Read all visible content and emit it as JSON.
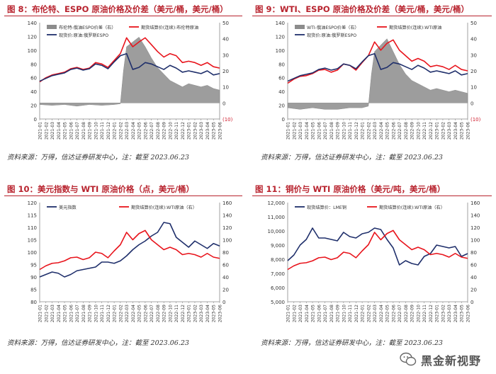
{
  "chart_data": [
    {
      "type": "line",
      "caption": "图 8：布伦特、ESPO 原油价格及价差（美元/桶，美元/桶）",
      "source": "资料来源：万得，信达证券研发中心，注：截至 2023.06.23",
      "x_ticks": [
        "2021-01",
        "2021-02",
        "2021-03",
        "2021-04",
        "2021-05",
        "2021-06",
        "2021-07",
        "2021-08",
        "2021-09",
        "2021-10",
        "2021-11",
        "2021-12",
        "2022-01",
        "2022-02",
        "2022-03",
        "2022-04",
        "2022-05",
        "2022-06",
        "2022-07",
        "2022-08",
        "2022-09",
        "2022-10",
        "2022-11",
        "2022-12",
        "2023-01",
        "2023-02",
        "2023-03",
        "2023-04",
        "2023-05",
        "2023-06"
      ],
      "left_axis": {
        "min": 0,
        "max": 140,
        "ticks": [
          "0",
          "20",
          "40",
          "60",
          "80",
          "100",
          "120",
          "140"
        ]
      },
      "right_axis": {
        "min": -10,
        "max": 50,
        "ticks": [
          "(10)",
          "0",
          "10",
          "20",
          "30",
          "40",
          "50"
        ]
      },
      "legend": [
        "布伦特-俄油ESPO价差（右）",
        "期货结算价(连续):布伦特原油",
        "现货价:原油:俄罗斯ESPO"
      ],
      "series": [
        {
          "name": "布伦特-俄油ESPO价差（右）",
          "axis": "right",
          "kind": "area",
          "color": "#8c8c8c",
          "x": [
            0,
            2,
            4,
            6,
            8,
            10,
            12,
            13,
            13.5,
            14,
            15,
            16,
            17,
            18,
            19,
            20,
            21,
            22,
            23,
            24,
            25,
            26,
            27,
            28,
            29
          ],
          "values": [
            -1,
            -1.5,
            -1,
            -2,
            -1,
            -1.5,
            -1,
            -0.5,
            20,
            35,
            38,
            41,
            35,
            28,
            22,
            18,
            14,
            12,
            10,
            12,
            11,
            10,
            11,
            9,
            8
          ]
        },
        {
          "name": "期货结算价(连续):布伦特原油",
          "axis": "left",
          "kind": "line",
          "color": "#e8141c",
          "x": [
            0,
            1,
            2,
            3,
            4,
            5,
            6,
            7,
            8,
            9,
            10,
            11,
            12,
            13,
            14,
            15,
            16,
            17,
            18,
            19,
            20,
            21,
            22,
            23,
            24,
            25,
            26,
            27,
            28,
            29
          ],
          "values": [
            54,
            60,
            64,
            66,
            68,
            73,
            75,
            72,
            74,
            82,
            80,
            75,
            85,
            95,
            118,
            105,
            112,
            118,
            108,
            98,
            90,
            95,
            92,
            82,
            84,
            82,
            78,
            82,
            76,
            74
          ]
        },
        {
          "name": "现货价:原油:俄罗斯ESPO",
          "axis": "left",
          "kind": "line",
          "color": "#1f2f6b",
          "x": [
            0,
            1,
            2,
            3,
            4,
            5,
            6,
            7,
            8,
            9,
            10,
            11,
            12,
            13,
            14,
            15,
            16,
            17,
            18,
            19,
            20,
            21,
            22,
            23,
            24,
            25,
            26,
            27,
            28,
            29
          ],
          "values": [
            55,
            59,
            63,
            65,
            67,
            72,
            74,
            71,
            73,
            80,
            78,
            73,
            83,
            92,
            95,
            72,
            75,
            82,
            80,
            76,
            72,
            78,
            74,
            68,
            70,
            68,
            66,
            70,
            64,
            66
          ]
        }
      ]
    },
    {
      "type": "line",
      "caption": "图 9：WTI、ESPO 原油价格及价差（美元/桶，美元/桶）",
      "source": "资料来源：万得，信达证券研发中心，注：截至 2023.06.23",
      "x_ticks": [
        "2021-01",
        "2021-02",
        "2021-03",
        "2021-04",
        "2021-05",
        "2021-06",
        "2021-07",
        "2021-08",
        "2021-09",
        "2021-10",
        "2021-11",
        "2021-12",
        "2022-01",
        "2022-02",
        "2022-03",
        "2022-04",
        "2022-05",
        "2022-06",
        "2022-07",
        "2022-08",
        "2022-09",
        "2022-10",
        "2022-11",
        "2022-12",
        "2023-01",
        "2023-02",
        "2023-03",
        "2023-04",
        "2023-05",
        "2023-06"
      ],
      "left_axis": {
        "min": 0,
        "max": 140,
        "ticks": [
          "0",
          "20",
          "40",
          "60",
          "80",
          "100",
          "120",
          "140"
        ]
      },
      "right_axis": {
        "min": -10,
        "max": 50,
        "ticks": [
          "(10)",
          "0",
          "10",
          "20",
          "30",
          "40",
          "50"
        ]
      },
      "legend": [
        "WTI-俄油ESPO价差（右）",
        "期货结算价(连续):WTI原油",
        "现货价:原油:俄罗斯ESPO"
      ],
      "series": [
        {
          "name": "WTI-俄油ESPO价差（右）",
          "axis": "right",
          "kind": "area",
          "color": "#8c8c8c",
          "x": [
            0,
            2,
            4,
            6,
            8,
            10,
            12,
            13,
            13.5,
            14,
            15,
            16,
            17,
            18,
            19,
            20,
            21,
            22,
            23,
            24,
            25,
            26,
            27,
            28,
            29
          ],
          "values": [
            -3,
            -4,
            -3,
            -4,
            -4,
            -3,
            -3,
            -2,
            18,
            32,
            36,
            40,
            32,
            24,
            18,
            14,
            12,
            10,
            8,
            9,
            8,
            7,
            8,
            7,
            6
          ]
        },
        {
          "name": "期货结算价(连续):WTI原油",
          "axis": "left",
          "kind": "line",
          "color": "#e8141c",
          "x": [
            0,
            1,
            2,
            3,
            4,
            5,
            6,
            7,
            8,
            9,
            10,
            11,
            12,
            13,
            14,
            15,
            16,
            17,
            18,
            19,
            20,
            21,
            22,
            23,
            24,
            25,
            26,
            27,
            28,
            29
          ],
          "values": [
            52,
            58,
            62,
            63,
            66,
            71,
            72,
            68,
            71,
            80,
            78,
            71,
            82,
            92,
            112,
            100,
            110,
            115,
            100,
            92,
            84,
            88,
            84,
            76,
            78,
            76,
            72,
            78,
            72,
            70
          ]
        },
        {
          "name": "现货价:原油:俄罗斯ESPO",
          "axis": "left",
          "kind": "line",
          "color": "#1f2f6b",
          "x": [
            0,
            1,
            2,
            3,
            4,
            5,
            6,
            7,
            8,
            9,
            10,
            11,
            12,
            13,
            14,
            15,
            16,
            17,
            18,
            19,
            20,
            21,
            22,
            23,
            24,
            25,
            26,
            27,
            28,
            29
          ],
          "values": [
            55,
            59,
            63,
            65,
            67,
            72,
            74,
            71,
            73,
            80,
            78,
            73,
            83,
            92,
            95,
            72,
            75,
            82,
            80,
            76,
            72,
            78,
            74,
            68,
            70,
            68,
            66,
            70,
            64,
            66
          ]
        }
      ]
    },
    {
      "type": "line",
      "caption": "图 10：美元指数与 WTI 原油价格（点，美元/桶）",
      "source": "资料来源：万得，信达证券研发中心，注：截至 2023.06.23",
      "x_ticks": [
        "2021-01",
        "2021-02",
        "2021-03",
        "2021-04",
        "2021-05",
        "2021-06",
        "2021-07",
        "2021-08",
        "2021-09",
        "2021-10",
        "2021-11",
        "2021-12",
        "2022-01",
        "2022-02",
        "2022-03",
        "2022-04",
        "2022-05",
        "2022-06",
        "2022-07",
        "2022-08",
        "2022-09",
        "2022-10",
        "2022-11",
        "2022-12",
        "2023-01",
        "2023-02",
        "2023-03",
        "2023-04",
        "2023-05",
        "2023-06"
      ],
      "left_axis": {
        "min": 80,
        "max": 120,
        "ticks": [
          "80",
          "85",
          "90",
          "95",
          "100",
          "105",
          "110",
          "115",
          "120"
        ]
      },
      "right_axis": {
        "min": 0,
        "max": 160,
        "ticks": [
          "0",
          "20",
          "40",
          "60",
          "80",
          "100",
          "120",
          "140",
          "160"
        ]
      },
      "legend": [
        "美元指数",
        "期货结算价(连续):WTI原油（右）"
      ],
      "series": [
        {
          "name": "美元指数",
          "axis": "left",
          "kind": "line",
          "color": "#1f2f6b",
          "x": [
            0,
            1,
            2,
            3,
            4,
            5,
            6,
            7,
            8,
            9,
            10,
            11,
            12,
            13,
            14,
            15,
            16,
            17,
            18,
            19,
            20,
            21,
            22,
            23,
            24,
            25,
            26,
            27,
            28,
            29
          ],
          "values": [
            90,
            91,
            92,
            91.5,
            90,
            91,
            92.5,
            93,
            93.5,
            94,
            96,
            96,
            95.5,
            96.5,
            98.5,
            101,
            103,
            104.5,
            106.5,
            108,
            112,
            111.5,
            106,
            104,
            102,
            104.5,
            103,
            101.5,
            103.5,
            102.5
          ]
        },
        {
          "name": "期货结算价(连续):WTI原油（右）",
          "axis": "right",
          "kind": "line",
          "color": "#e8141c",
          "x": [
            0,
            1,
            2,
            3,
            4,
            5,
            6,
            7,
            8,
            9,
            10,
            11,
            12,
            13,
            14,
            15,
            16,
            17,
            18,
            19,
            20,
            21,
            22,
            23,
            24,
            25,
            26,
            27,
            28,
            29
          ],
          "values": [
            52,
            58,
            62,
            63,
            66,
            71,
            72,
            68,
            71,
            80,
            78,
            71,
            82,
            92,
            112,
            100,
            110,
            115,
            100,
            92,
            84,
            88,
            84,
            76,
            78,
            76,
            72,
            78,
            72,
            70
          ]
        }
      ]
    },
    {
      "type": "line",
      "caption": "图 11：铜价与 WTI 原油价格（美元/吨，美元/桶）",
      "source": "资料来源：万得，信达证券研发中心，注：截至 2023.06.23",
      "x_ticks": [
        "2021-01",
        "2021-02",
        "2021-03",
        "2021-04",
        "2021-05",
        "2021-06",
        "2021-07",
        "2021-08",
        "2021-09",
        "2021-10",
        "2021-11",
        "2021-12",
        "2022-01",
        "2022-02",
        "2022-03",
        "2022-04",
        "2022-05",
        "2022-06",
        "2022-07",
        "2022-08",
        "2022-09",
        "2022-10",
        "2022-11",
        "2022-12",
        "2023-01",
        "2023-02",
        "2023-03",
        "2023-04",
        "2023-05",
        "2023-06"
      ],
      "left_axis": {
        "min": 5000,
        "max": 12000,
        "ticks": [
          "5,000",
          "6,000",
          "7,000",
          "8,000",
          "9,000",
          "10,000",
          "11,000",
          "12,000"
        ]
      },
      "right_axis": {
        "min": 0,
        "max": 160,
        "ticks": [
          "0",
          "20",
          "40",
          "60",
          "80",
          "100",
          "120",
          "140",
          "160"
        ]
      },
      "legend": [
        "现货结算价：LME铜",
        "期货结算价(连续):WTI原油（右）"
      ],
      "series": [
        {
          "name": "现货结算价：LME铜",
          "axis": "left",
          "kind": "line",
          "color": "#1f2f6b",
          "x": [
            0,
            1,
            2,
            3,
            4,
            5,
            6,
            7,
            8,
            9,
            10,
            11,
            12,
            13,
            14,
            15,
            16,
            17,
            18,
            19,
            20,
            21,
            22,
            23,
            24,
            25,
            26,
            27,
            28,
            29
          ],
          "values": [
            7900,
            8300,
            9000,
            9400,
            10200,
            9500,
            9500,
            9400,
            9300,
            9900,
            9600,
            9500,
            9800,
            9900,
            10200,
            10100,
            9400,
            8800,
            7600,
            7900,
            7700,
            7600,
            8200,
            8400,
            9000,
            8900,
            8800,
            8900,
            8200,
            8400
          ]
        },
        {
          "name": "期货结算价(连续):WTI原油（右）",
          "axis": "right",
          "kind": "line",
          "color": "#e8141c",
          "x": [
            0,
            1,
            2,
            3,
            4,
            5,
            6,
            7,
            8,
            9,
            10,
            11,
            12,
            13,
            14,
            15,
            16,
            17,
            18,
            19,
            20,
            21,
            22,
            23,
            24,
            25,
            26,
            27,
            28,
            29
          ],
          "values": [
            52,
            58,
            62,
            63,
            66,
            71,
            72,
            68,
            71,
            80,
            78,
            71,
            82,
            92,
            112,
            100,
            110,
            115,
            100,
            92,
            84,
            88,
            84,
            76,
            78,
            76,
            72,
            78,
            72,
            70
          ]
        }
      ]
    }
  ],
  "watermark": {
    "text": "黑金新视野"
  }
}
